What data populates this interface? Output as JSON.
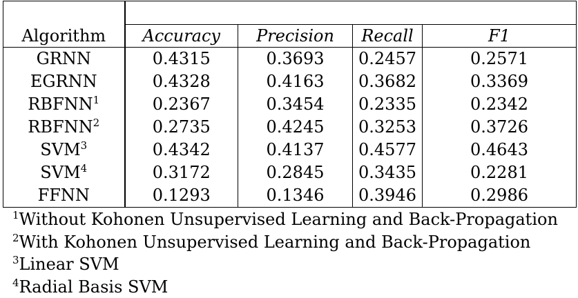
{
  "table": {
    "headers": {
      "algorithm": "Algorithm",
      "accuracy": "Accuracy",
      "precision": "Precision",
      "recall": "Recall",
      "f1": "F1"
    },
    "rows": [
      {
        "name": "GRNN",
        "sup": "",
        "accuracy": "0.4315",
        "precision": "0.3693",
        "recall": "0.2457",
        "f1": "0.2571"
      },
      {
        "name": "EGRNN",
        "sup": "",
        "accuracy": "0.4328",
        "precision": "0.4163",
        "recall": "0.3682",
        "f1": "0.3369"
      },
      {
        "name": "RBFNN",
        "sup": "1",
        "accuracy": "0.2367",
        "precision": "0.3454",
        "recall": "0.2335",
        "f1": "0.2342"
      },
      {
        "name": "RBFNN",
        "sup": "2",
        "accuracy": "0.2735",
        "precision": "0.4245",
        "recall": "0.3253",
        "f1": "0.3726"
      },
      {
        "name": "SVM",
        "sup": "3",
        "accuracy": "0.4342",
        "precision": "0.4137",
        "recall": "0.4577",
        "f1": "0.4643"
      },
      {
        "name": "SVM",
        "sup": "4",
        "accuracy": "0.3172",
        "precision": "0.2845",
        "recall": "0.3435",
        "f1": "0.2281"
      },
      {
        "name": "FFNN",
        "sup": "",
        "accuracy": "0.1293",
        "precision": "0.1346",
        "recall": "0.3946",
        "f1": "0.2986"
      }
    ]
  },
  "footnotes": [
    {
      "mark": "1",
      "text": "Without Kohonen Unsupervised Learning and Back-Propagation"
    },
    {
      "mark": "2",
      "text": "With Kohonen Unsupervised Learning and Back-Propagation"
    },
    {
      "mark": "3",
      "text": "Linear SVM"
    },
    {
      "mark": "4",
      "text": "Radial Basis SVM"
    }
  ]
}
